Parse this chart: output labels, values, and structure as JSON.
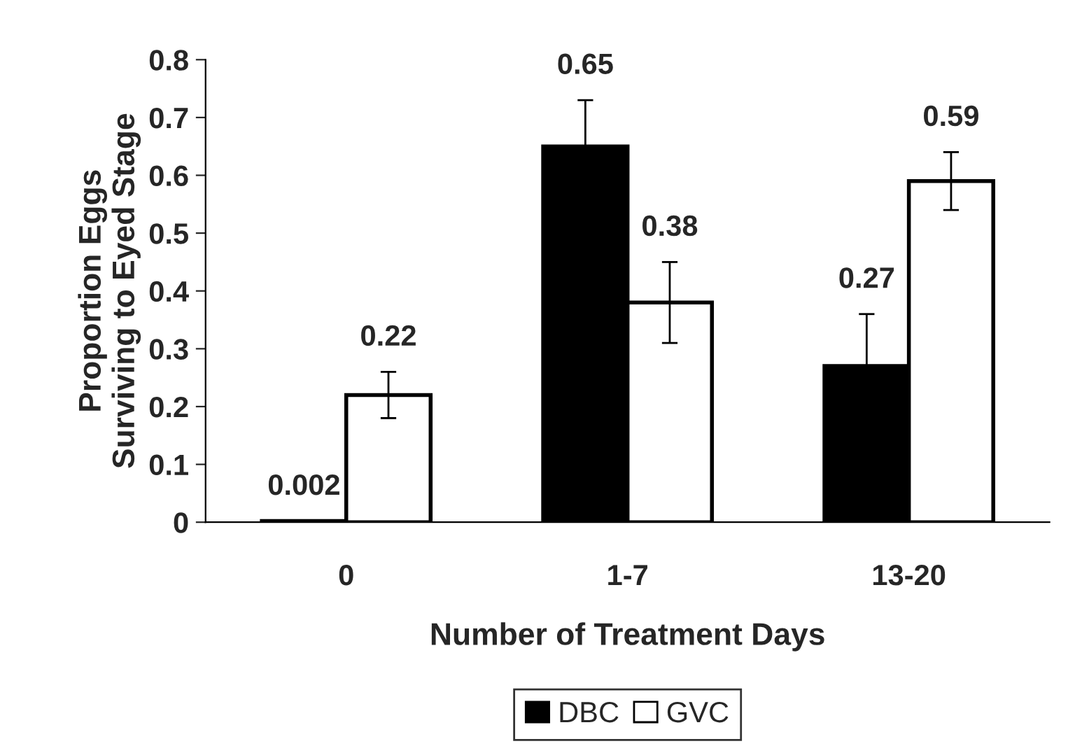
{
  "chart_data": {
    "type": "bar",
    "xlabel": "Number of Treatment Days",
    "ylabel": "Proportion Eggs\nSurviving to Eyed Stage",
    "categories": [
      "0",
      "1-7",
      "13-20"
    ],
    "series": [
      {
        "name": "DBC",
        "color": "#000000",
        "values": [
          0.002,
          0.65,
          0.27
        ],
        "errors": [
          null,
          0.08,
          0.09
        ]
      },
      {
        "name": "GVC",
        "color": "#ffffff",
        "values": [
          0.22,
          0.38,
          0.59
        ],
        "errors": [
          0.04,
          0.07,
          0.05
        ]
      }
    ],
    "ylim": [
      0,
      0.8
    ],
    "yticks": [
      0,
      0.1,
      0.2,
      0.3,
      0.4,
      0.5,
      0.6,
      0.7,
      0.8
    ],
    "data_labels": true,
    "grid": false,
    "legend": "bottom"
  }
}
